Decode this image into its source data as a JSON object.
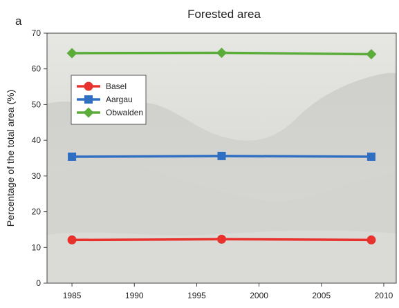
{
  "panel_label": "a",
  "chart_data": {
    "type": "line",
    "title": "Forested area",
    "xlabel": "",
    "ylabel": "Percentage of the total area (%)",
    "xlim": [
      1983,
      2011
    ],
    "ylim": [
      0,
      70
    ],
    "x_ticks": [
      1985,
      1990,
      1995,
      2000,
      2005,
      2010
    ],
    "y_ticks": [
      0,
      10,
      20,
      30,
      40,
      50,
      60,
      70
    ],
    "grid": false,
    "legend_position": "upper-left",
    "background": "faded photograph of a forested hillside",
    "series": [
      {
        "name": "Basel",
        "color": "#e8322d",
        "marker": "circle",
        "x": [
          1985,
          1997,
          2009
        ],
        "y": [
          12.1,
          12.3,
          12.1
        ]
      },
      {
        "name": "Aargau",
        "color": "#2f6fc2",
        "marker": "square",
        "x": [
          1985,
          1997,
          2009
        ],
        "y": [
          35.4,
          35.6,
          35.4
        ]
      },
      {
        "name": "Obwalden",
        "color": "#5cac3a",
        "marker": "diamond",
        "x": [
          1985,
          1997,
          2009
        ],
        "y": [
          64.4,
          64.5,
          64.1
        ]
      }
    ]
  }
}
